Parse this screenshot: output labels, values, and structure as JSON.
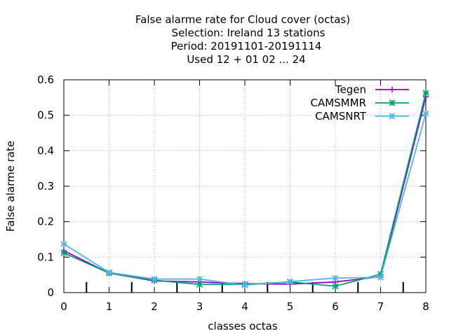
{
  "chart_data": {
    "type": "line",
    "title_lines": [
      "False alarme rate  for Cloud cover (octas)",
      "Selection: Ireland      13 stations",
      "Period: 20191101-20191114",
      "Used  12 + 01 02 ... 24"
    ],
    "xlabel": "classes octas",
    "ylabel": "False alarme rate",
    "x": [
      0,
      1,
      2,
      3,
      4,
      5,
      6,
      7,
      8
    ],
    "xlim": [
      0,
      8
    ],
    "ylim": [
      0,
      0.6
    ],
    "xticks": [
      "0",
      "1",
      "2",
      "3",
      "4",
      "5",
      "6",
      "7",
      "8"
    ],
    "yticks": [
      0,
      0.1,
      0.2,
      0.3,
      0.4,
      0.5,
      0.6
    ],
    "ytick_labels": [
      "0",
      "0.1",
      "0.2",
      "0.3",
      "0.4",
      "0.5",
      "0.6"
    ],
    "minor_ticks_at": [
      0.5,
      1.5,
      2.5,
      3.5,
      4.5,
      5.5,
      6.5,
      7.5
    ],
    "grid": true,
    "legend_position": "top-right",
    "series": [
      {
        "name": "Tegen",
        "color": "#9400d3",
        "marker": "plus",
        "values": [
          0.118,
          0.055,
          0.033,
          0.03,
          0.025,
          0.024,
          0.03,
          0.045,
          0.552
        ]
      },
      {
        "name": "CAMSMMR",
        "color": "#009e73",
        "marker": "cross",
        "values": [
          0.112,
          0.055,
          0.035,
          0.023,
          0.023,
          0.03,
          0.018,
          0.052,
          0.563
        ]
      },
      {
        "name": "CAMSNRT",
        "color": "#56b4e9",
        "marker": "star",
        "values": [
          0.137,
          0.057,
          0.038,
          0.038,
          0.021,
          0.031,
          0.041,
          0.043,
          0.505
        ]
      }
    ]
  }
}
